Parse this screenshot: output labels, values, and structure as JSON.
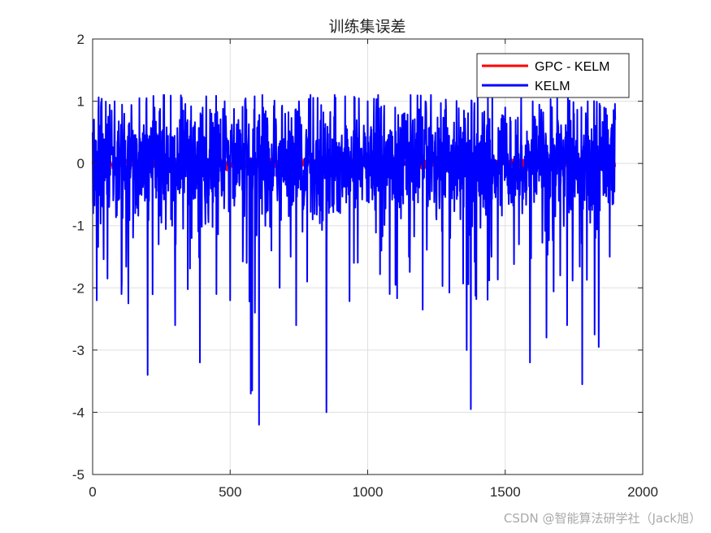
{
  "chart_data": {
    "type": "line",
    "title": "训练集误差",
    "xlabel": "",
    "ylabel": "",
    "xlim": [
      0,
      2000
    ],
    "ylim": [
      -5,
      2
    ],
    "xticks": [
      0,
      500,
      1000,
      1500,
      2000
    ],
    "yticks": [
      2,
      1,
      0,
      -1,
      -2,
      -3,
      -4,
      -5
    ],
    "grid": true,
    "legend_position": "top-right",
    "n_points": 1900,
    "series": [
      {
        "name": "GPC - KELM",
        "color": "#ff0000",
        "x": [
          0,
          200,
          400,
          600,
          800,
          1000,
          1200,
          1400,
          1600,
          1800,
          1900
        ],
        "y": [
          0,
          0,
          0,
          0,
          0,
          0,
          0,
          0,
          0,
          0,
          0
        ]
      },
      {
        "name": "KELM",
        "color": "#0000ff",
        "x": [
          0,
          15,
          30,
          60,
          80,
          105,
          115,
          130,
          140,
          155,
          170,
          190,
          200,
          225,
          240,
          260,
          285,
          300,
          330,
          360,
          390,
          400,
          420,
          450,
          480,
          500,
          530,
          560,
          575,
          580,
          590,
          605,
          620,
          650,
          680,
          700,
          720,
          740,
          750,
          780,
          800,
          850,
          880,
          900,
          950,
          1000,
          1050,
          1080,
          1100,
          1150,
          1200,
          1210,
          1250,
          1300,
          1350,
          1360,
          1375,
          1400,
          1420,
          1450,
          1500,
          1550,
          1590,
          1600,
          1650,
          1700,
          1725,
          1750,
          1780,
          1800,
          1825,
          1840,
          1860,
          1880,
          1900
        ],
        "y": [
          0.5,
          -2.2,
          0.9,
          -0.7,
          1.0,
          -2.1,
          0.8,
          -2.25,
          0.6,
          -0.8,
          1.05,
          -0.6,
          -3.4,
          0.9,
          -1.3,
          1.1,
          -0.9,
          -2.6,
          0.85,
          -1.2,
          -3.2,
          0.9,
          -0.8,
          -2.1,
          1.0,
          -2.2,
          0.7,
          -1.6,
          -3.7,
          -3.65,
          -2.4,
          -4.2,
          0.9,
          -1.4,
          -2.0,
          0.8,
          -1.5,
          -2.6,
          1.0,
          -1.9,
          -0.9,
          -4.0,
          1.1,
          -0.8,
          -1.6,
          1.0,
          -1.4,
          -2.1,
          0.9,
          -1.5,
          -2.35,
          1.0,
          -0.9,
          -1.2,
          0.85,
          -3.0,
          -3.95,
          1.1,
          -0.7,
          -1.5,
          0.9,
          -1.3,
          -3.2,
          1.0,
          -2.8,
          -1.8,
          -2.6,
          0.8,
          -3.55,
          1.0,
          -2.75,
          -2.95,
          0.9,
          -1.5,
          0.7
        ]
      }
    ]
  },
  "watermark": "CSDN @智能算法研学社（Jack旭）"
}
